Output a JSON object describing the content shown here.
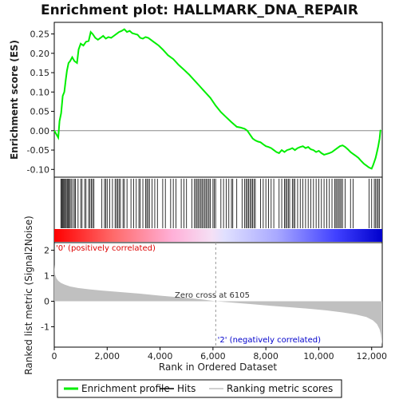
{
  "chart_data": {
    "type": "line",
    "title": "Enrichment plot: HALLMARK_DNA_REPAIR",
    "xlabel": "Rank in Ordered Dataset",
    "xlim": [
      0,
      12400
    ],
    "x_ticks": [
      0,
      2000,
      4000,
      6000,
      8000,
      10000,
      12000
    ],
    "x_tick_labels": [
      "0",
      "2,000",
      "4,000",
      "6,000",
      "8,000",
      "10,000",
      "12,000"
    ],
    "es_panel": {
      "ylabel": "Enrichment score (ES)",
      "ylim": [
        -0.12,
        0.28
      ],
      "y_ticks": [
        -0.1,
        -0.05,
        0.0,
        0.05,
        0.1,
        0.15,
        0.2,
        0.25
      ],
      "y_tick_labels": [
        "-0.10",
        "-0.05",
        "0.00",
        "0.05",
        "0.10",
        "0.15",
        "0.20",
        "0.25"
      ],
      "series": [
        {
          "name": "Enrichment profile",
          "color": "#00ee00",
          "x": [
            0,
            150,
            200,
            260,
            320,
            380,
            430,
            480,
            540,
            600,
            680,
            760,
            860,
            920,
            1000,
            1100,
            1200,
            1300,
            1380,
            1450,
            1550,
            1650,
            1750,
            1850,
            1950,
            2050,
            2150,
            2250,
            2350,
            2450,
            2550,
            2650,
            2750,
            2850,
            2950,
            3050,
            3150,
            3250,
            3350,
            3450,
            3550,
            3650,
            3750,
            3850,
            3950,
            4100,
            4300,
            4500,
            4700,
            4900,
            5100,
            5300,
            5500,
            5700,
            5900,
            6100,
            6300,
            6500,
            6700,
            6900,
            7050,
            7200,
            7300,
            7400,
            7500,
            7600,
            7700,
            7800,
            7900,
            8000,
            8100,
            8200,
            8300,
            8400,
            8500,
            8600,
            8700,
            8800,
            8900,
            9000,
            9100,
            9200,
            9300,
            9400,
            9500,
            9600,
            9700,
            9800,
            9900,
            10000,
            10100,
            10200,
            10300,
            10400,
            10500,
            10600,
            10700,
            10800,
            10900,
            11000,
            11100,
            11200,
            11300,
            11400,
            11500,
            11600,
            11700,
            11800,
            11900,
            12000,
            12050,
            12100,
            12150,
            12200,
            12250,
            12300,
            12330,
            12350
          ],
          "y": [
            0.0,
            -0.018,
            0.025,
            0.045,
            0.09,
            0.1,
            0.13,
            0.155,
            0.175,
            0.18,
            0.19,
            0.18,
            0.175,
            0.21,
            0.225,
            0.22,
            0.23,
            0.232,
            0.255,
            0.25,
            0.24,
            0.235,
            0.24,
            0.245,
            0.238,
            0.242,
            0.24,
            0.245,
            0.25,
            0.255,
            0.258,
            0.262,
            0.255,
            0.258,
            0.252,
            0.25,
            0.248,
            0.24,
            0.238,
            0.242,
            0.24,
            0.235,
            0.23,
            0.225,
            0.22,
            0.21,
            0.195,
            0.185,
            0.17,
            0.158,
            0.145,
            0.13,
            0.115,
            0.1,
            0.085,
            0.065,
            0.048,
            0.035,
            0.022,
            0.01,
            0.008,
            0.005,
            0.0,
            -0.01,
            -0.02,
            -0.025,
            -0.028,
            -0.03,
            -0.035,
            -0.04,
            -0.042,
            -0.045,
            -0.05,
            -0.055,
            -0.058,
            -0.05,
            -0.055,
            -0.05,
            -0.048,
            -0.045,
            -0.05,
            -0.045,
            -0.042,
            -0.04,
            -0.045,
            -0.042,
            -0.048,
            -0.05,
            -0.055,
            -0.052,
            -0.058,
            -0.062,
            -0.06,
            -0.058,
            -0.055,
            -0.05,
            -0.045,
            -0.04,
            -0.038,
            -0.042,
            -0.048,
            -0.055,
            -0.06,
            -0.065,
            -0.07,
            -0.078,
            -0.085,
            -0.09,
            -0.095,
            -0.098,
            -0.09,
            -0.08,
            -0.07,
            -0.055,
            -0.04,
            -0.02,
            0.0,
            0.002
          ]
        }
      ]
    },
    "hits_panel": {
      "legend_name": "Hits",
      "hit_positions": [
        250,
        280,
        310,
        340,
        380,
        420,
        450,
        490,
        520,
        560,
        600,
        640,
        700,
        760,
        800,
        900,
        1000,
        1050,
        1150,
        1200,
        1300,
        1350,
        1400,
        1450,
        1500,
        1800,
        1900,
        1950,
        2000,
        2100,
        2200,
        2300,
        2350,
        2400,
        2450,
        2500,
        2600,
        2650,
        2750,
        2900,
        3000,
        3100,
        3200,
        3250,
        3350,
        3450,
        3500,
        3550,
        3600,
        3700,
        3800,
        3900,
        4100,
        4200,
        4400,
        4500,
        4600,
        4800,
        4900,
        5000,
        5200,
        5300,
        5350,
        5400,
        5450,
        5500,
        5550,
        5600,
        5650,
        5700,
        5750,
        5800,
        5850,
        5900,
        6000,
        6050,
        6100,
        6300,
        6400,
        6500,
        6600,
        6700,
        6750,
        6900,
        7100,
        7200,
        7250,
        7300,
        7350,
        7400,
        7450,
        7500,
        7550,
        7600,
        7800,
        7900,
        8000,
        8100,
        8200,
        8300,
        8500,
        8600,
        8700,
        8750,
        8800,
        8850,
        8900,
        9000,
        9050,
        9100,
        9200,
        9300,
        9400,
        9500,
        9600,
        9700,
        9800,
        9900,
        10000,
        10100,
        10200,
        10300,
        10400,
        10500,
        10600,
        10650,
        10700,
        10750,
        10800,
        10850,
        10900,
        11000,
        11200,
        11300,
        11900,
        12000,
        12100,
        12150,
        12200,
        12250,
        12300
      ]
    },
    "ranked_panel": {
      "legend_name": "Ranking metric scores",
      "ylabel": "Ranked list metric (Signal2Noise)",
      "ylim": [
        -1.8,
        2.3
      ],
      "y_ticks": [
        -1,
        0,
        1,
        2
      ],
      "y_tick_labels": [
        "-1",
        "0",
        "1",
        "2"
      ],
      "x": [
        0,
        30,
        80,
        150,
        250,
        400,
        600,
        900,
        1300,
        1800,
        2500,
        3200,
        4000,
        4800,
        5500,
        6105,
        6800,
        7500,
        8200,
        9000,
        9700,
        10300,
        10900,
        11400,
        11800,
        12050,
        12200,
        12300,
        12350,
        12380,
        12399
      ],
      "y": [
        1.45,
        1.05,
        0.9,
        0.8,
        0.72,
        0.65,
        0.58,
        0.52,
        0.47,
        0.42,
        0.36,
        0.3,
        0.22,
        0.15,
        0.08,
        0.0,
        -0.06,
        -0.12,
        -0.18,
        -0.24,
        -0.3,
        -0.36,
        -0.44,
        -0.52,
        -0.62,
        -0.75,
        -0.9,
        -1.1,
        -1.3,
        -1.55,
        -1.7
      ],
      "zero_cross_label": "Zero cross at 6105",
      "zero_cross": 6105,
      "pos_label": "'0' (positively correlated)",
      "neg_label": "'2' (negatively correlated)"
    },
    "legend": [
      "Enrichment profile",
      "Hits",
      "Ranking metric scores"
    ],
    "colors": {
      "es_line": "#00ee00",
      "hit": "#000000",
      "ranked_fill": "#c0c0c0",
      "pos_text": "#dd0000",
      "neg_text": "#0000cc",
      "heat_pos": "#ff0000",
      "heat_neg": "#0000ff"
    }
  }
}
